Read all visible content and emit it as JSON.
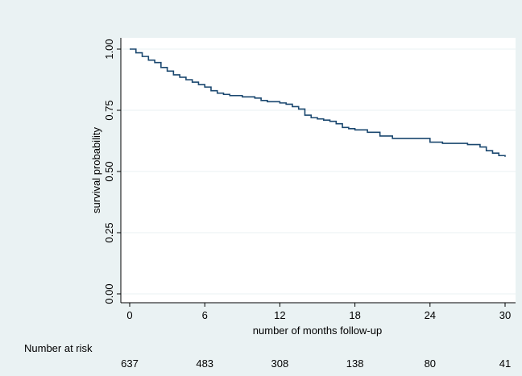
{
  "chart_data": {
    "type": "line",
    "title": "",
    "xlabel": "number of months follow-up",
    "ylabel": "survival probability",
    "xlim": [
      0,
      30
    ],
    "ylim": [
      0,
      1
    ],
    "x_ticks": [
      0,
      6,
      12,
      18,
      24,
      30
    ],
    "x_tick_labels": [
      "0",
      "6",
      "12",
      "18",
      "24",
      "30"
    ],
    "y_ticks": [
      0,
      0.25,
      0.5,
      0.75,
      1
    ],
    "y_tick_labels": [
      "0.00",
      "0.25",
      "0.50",
      "0.75",
      "1.00"
    ],
    "grid": "horizontal",
    "colors": {
      "line": "#1a476f",
      "background": "#eaf2f3",
      "plot_area": "#ffffff",
      "grid": "#eaf2f3"
    },
    "series": [
      {
        "step": true,
        "x": [
          0,
          0.5,
          1,
          1.5,
          2,
          2.5,
          3,
          3.5,
          4,
          4.5,
          5,
          5.5,
          6,
          6.5,
          7,
          7.5,
          8,
          9,
          10,
          10.5,
          11,
          12,
          12.5,
          13,
          13.5,
          14,
          14.5,
          15,
          15.5,
          16,
          16.5,
          17,
          17.5,
          18,
          19,
          20,
          21,
          22,
          23,
          24,
          25,
          26,
          27,
          28,
          28.5,
          29,
          29.5,
          30
        ],
        "y": [
          1.0,
          0.985,
          0.97,
          0.955,
          0.945,
          0.925,
          0.91,
          0.895,
          0.885,
          0.875,
          0.865,
          0.855,
          0.845,
          0.83,
          0.82,
          0.815,
          0.81,
          0.805,
          0.8,
          0.79,
          0.785,
          0.78,
          0.775,
          0.765,
          0.755,
          0.73,
          0.72,
          0.715,
          0.71,
          0.705,
          0.695,
          0.68,
          0.675,
          0.67,
          0.66,
          0.645,
          0.635,
          0.635,
          0.635,
          0.62,
          0.615,
          0.615,
          0.61,
          0.6,
          0.585,
          0.575,
          0.565,
          0.56
        ]
      }
    ],
    "risk_table": {
      "label": "Number at risk",
      "times": [
        0,
        6,
        12,
        18,
        24,
        30
      ],
      "counts": [
        "637",
        "483",
        "308",
        "138",
        "80",
        "41"
      ]
    }
  }
}
